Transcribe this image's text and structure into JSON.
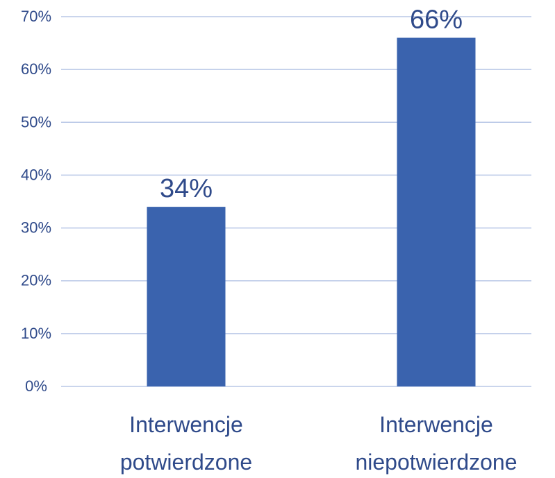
{
  "chart_data": {
    "type": "bar",
    "categories": [
      [
        "Interwencje",
        "potwierdzone"
      ],
      [
        "Interwencje",
        "niepotwierdzone"
      ]
    ],
    "values": [
      34,
      66
    ],
    "data_labels": [
      "34%",
      "66%"
    ],
    "y_ticks": [
      "0%",
      "10%",
      "20%",
      "30%",
      "40%",
      "50%",
      "60%",
      "70%"
    ],
    "ylim": [
      0,
      70
    ],
    "grid": true,
    "legend": false,
    "colors": {
      "bar": "#3a63ae",
      "grid": "#b8c7e6",
      "text": "#2f4a8a"
    }
  }
}
